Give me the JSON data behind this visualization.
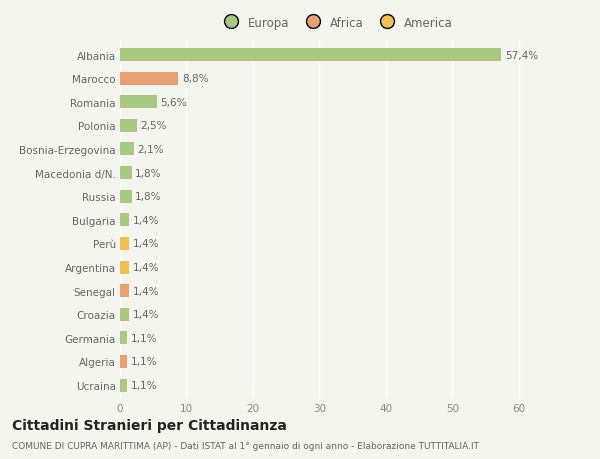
{
  "categories": [
    "Albania",
    "Marocco",
    "Romania",
    "Polonia",
    "Bosnia-Erzegovina",
    "Macedonia d/N.",
    "Russia",
    "Bulgaria",
    "Perù",
    "Argentina",
    "Senegal",
    "Croazia",
    "Germania",
    "Algeria",
    "Ucraina"
  ],
  "values": [
    57.4,
    8.8,
    5.6,
    2.5,
    2.1,
    1.8,
    1.8,
    1.4,
    1.4,
    1.4,
    1.4,
    1.4,
    1.1,
    1.1,
    1.1
  ],
  "labels": [
    "57,4%",
    "8,8%",
    "5,6%",
    "2,5%",
    "2,1%",
    "1,8%",
    "1,8%",
    "1,4%",
    "1,4%",
    "1,4%",
    "1,4%",
    "1,4%",
    "1,1%",
    "1,1%",
    "1,1%"
  ],
  "colors": [
    "#a8c97f",
    "#e8a070",
    "#a8c97f",
    "#a8c97f",
    "#a8c97f",
    "#a8c97f",
    "#a8c97f",
    "#a8c97f",
    "#f0c050",
    "#f0c050",
    "#e8a070",
    "#a8c97f",
    "#a8c97f",
    "#e8a070",
    "#a8c97f"
  ],
  "legend_labels": [
    "Europa",
    "Africa",
    "America"
  ],
  "legend_colors": [
    "#a8c97f",
    "#e8a070",
    "#f0c050"
  ],
  "xlim": [
    0,
    65
  ],
  "xticks": [
    0,
    10,
    20,
    30,
    40,
    50,
    60
  ],
  "title": "Cittadini Stranieri per Cittadinanza",
  "subtitle": "COMUNE DI CUPRA MARITTIMA (AP) - Dati ISTAT al 1° gennaio di ogni anno - Elaborazione TUTTITALIA.IT",
  "background_color": "#f5f5f0",
  "bar_height": 0.55,
  "grid_color": "#ffffff",
  "label_fontsize": 7.5,
  "tick_fontsize": 7.5,
  "title_fontsize": 10,
  "subtitle_fontsize": 6.5,
  "legend_fontsize": 8.5
}
